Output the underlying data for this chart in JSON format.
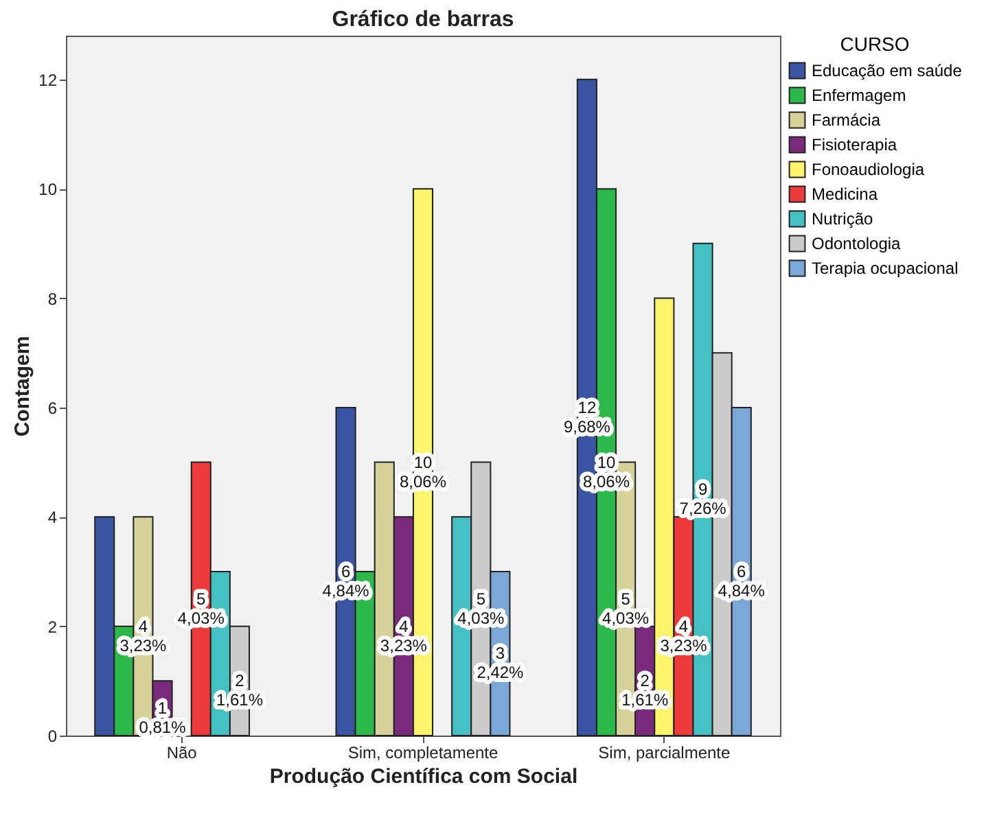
{
  "chart_data": {
    "type": "bar",
    "title": "Gráfico de barras",
    "xlabel": "Produção Científica com Social",
    "ylabel": "Contagem",
    "legend_title": "CURSO",
    "legend": "right",
    "categories": [
      "Não",
      "Sim, completamente",
      "Sim, parcialmente"
    ],
    "ylim": [
      0,
      12.8
    ],
    "yticks": [
      0,
      2,
      4,
      6,
      8,
      10,
      12
    ],
    "series": [
      {
        "name": "Educação em saúde",
        "color": "#3a54a4",
        "values": [
          4,
          6,
          12
        ],
        "value_labels": [
          null,
          "6\n4,84%",
          "12\n9,68%"
        ]
      },
      {
        "name": "Enfermagem",
        "color": "#2db84a",
        "values": [
          2,
          3,
          10
        ],
        "value_labels": [
          null,
          null,
          "10\n8,06%"
        ]
      },
      {
        "name": "Farmácia",
        "color": "#d6d29a",
        "values": [
          4,
          5,
          5
        ],
        "value_labels": [
          "4\n3,23%",
          null,
          "5\n4,03%"
        ]
      },
      {
        "name": "Fisioterapia",
        "color": "#7a2a7a",
        "values": [
          1,
          4,
          2
        ],
        "value_labels": [
          "1\n0,81%",
          "4\n3,23%",
          "2\n1,61%"
        ]
      },
      {
        "name": "Fonoaudiologia",
        "color": "#faf56a",
        "values": [
          0,
          10,
          8
        ],
        "value_labels": [
          null,
          "10\n8,06%",
          null
        ]
      },
      {
        "name": "Medicina",
        "color": "#ee3a3a",
        "values": [
          5,
          0,
          4
        ],
        "value_labels": [
          "5\n4,03%",
          null,
          "4\n3,23%"
        ]
      },
      {
        "name": "Nutrição",
        "color": "#45c1c4",
        "values": [
          3,
          4,
          9
        ],
        "value_labels": [
          null,
          null,
          "9\n7,26%"
        ]
      },
      {
        "name": "Odontologia",
        "color": "#cbcbcb",
        "values": [
          2,
          5,
          7
        ],
        "value_labels": [
          "2\n1,61%",
          "5\n4,03%",
          null
        ]
      },
      {
        "name": "Terapia ocupacional",
        "color": "#7aa7d6",
        "values": [
          0,
          3,
          6
        ],
        "value_labels": [
          null,
          "3\n2,42%",
          "6\n4,84%"
        ]
      }
    ]
  }
}
